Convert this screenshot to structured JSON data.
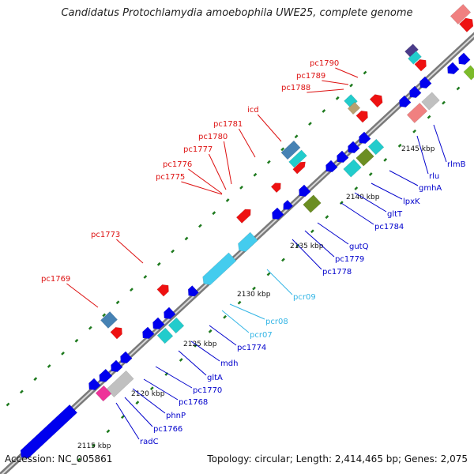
{
  "title": "Candidatus Protochlamydia amoebophila UWE25, complete genome",
  "footer": {
    "accession": "Accession: NC_005861",
    "topology": "Topology: circular; Length: 2,414,465 bp; Genes: 2,075"
  },
  "colors": {
    "backbone": "#8c8c8c",
    "tick": "#1e7a1e",
    "label_forward": "#dd1111",
    "label_reverse": "#0000cc",
    "label_rna": "#33b5e5",
    "label_kbp": "#111111"
  },
  "kbp_labels": [
    "2115 kbp",
    "2120 kbp",
    "2125 kbp",
    "2130 kbp",
    "2135 kbp",
    "2140 kbp",
    "2145 kbp"
  ],
  "gene_labels": {
    "forward": [
      "pc1769",
      "pc1773",
      "pc1775",
      "pc1776",
      "pc1777",
      "pc1780",
      "pc1781",
      "icd",
      "pc1788",
      "pc1789",
      "pc1790"
    ],
    "reverse": [
      "radC",
      "pc1766",
      "phnP",
      "pc1768",
      "pc1770",
      "gltA",
      "mdh",
      "pc1774",
      "pc1778",
      "pc1779",
      "gutQ",
      "pc1784",
      "gltT",
      "lpxK",
      "gmhA",
      "rlu",
      "rlmB"
    ],
    "rna": [
      "pcr07",
      "pcr08",
      "pcr09"
    ]
  }
}
